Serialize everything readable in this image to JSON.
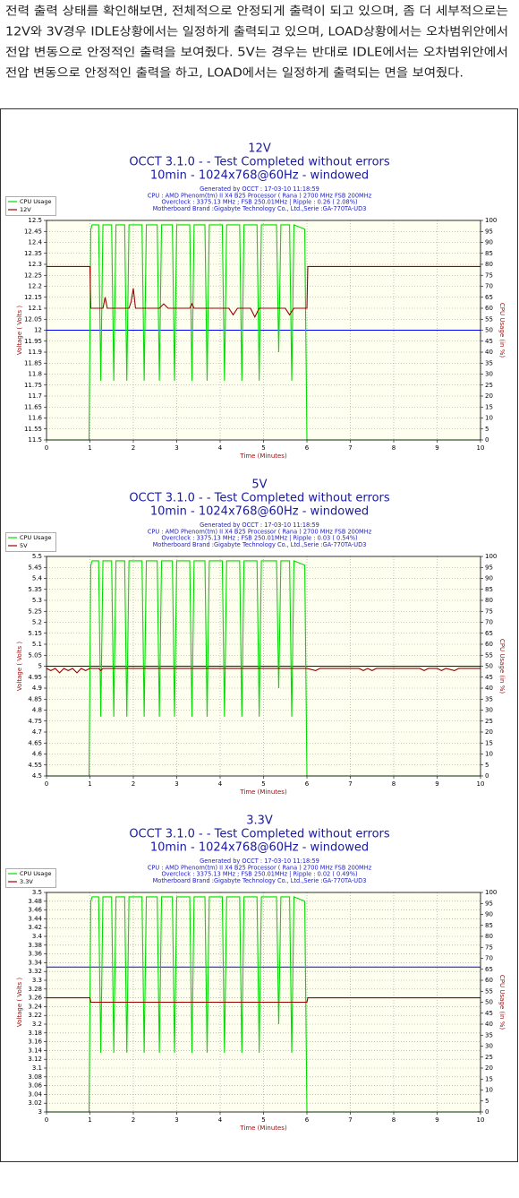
{
  "paragraph": [
    "전력 출력 상태를 확인해보면, 전체적으로 안정되게 출력이 되고 있으며, 좀 더 세부적으로는",
    "12V와 3V경우 IDLE상황에서는 일정하게 출력되고 있으며, LOAD상황에서는 오차범위안에서",
    "전압 변동으로 안정적인 출력을 보여줬다. 5V는 경우는 반대로 IDLE에서는 오차범위안에서",
    "전압 변동으로 안정적인 출력을 하고, LOAD에서는 일정하게 출력되는 면을 보여줬다."
  ],
  "chart_data": [
    {
      "type": "line",
      "title": "12V",
      "subtitle": [
        "OCCT 3.1.0 -  - Test Completed without errors",
        "10min - 1024x768@60Hz - windowed"
      ],
      "info": [
        "Generated by OCCT : 17-03-10 11:18:59",
        "CPU : AMD Phenom(tm) II X4 B25 Processor ( Rana ) 2700 MHz FSB 200MHz",
        "Overclock : 3375.13 MHz ; FSB 250.01MHz | Ripple : 0.26 ( 2.08%)",
        "Motherboard Brand :Gigabyte Technology Co., Ltd.,Serie :GA-770TA-UD3"
      ],
      "xlabel": "Time (Minutes)",
      "ylabel": "Voltage ( Volts )",
      "y2label": "CPU Usage (in %)",
      "xlim": [
        0,
        10
      ],
      "xticks": [
        0,
        1,
        2,
        3,
        4,
        5,
        6,
        7,
        8,
        9,
        10
      ],
      "ylim": [
        11.5,
        12.5
      ],
      "yticks": [
        11.5,
        11.55,
        11.6,
        11.65,
        11.7,
        11.75,
        11.8,
        11.85,
        11.9,
        11.95,
        12,
        12.05,
        12.1,
        12.15,
        12.2,
        12.25,
        12.3,
        12.35,
        12.4,
        12.45,
        12.5
      ],
      "y2lim": [
        0,
        100
      ],
      "y2ticks": [
        0,
        5,
        10,
        15,
        20,
        25,
        30,
        35,
        40,
        45,
        50,
        55,
        60,
        65,
        70,
        75,
        80,
        85,
        90,
        95,
        100
      ],
      "grid": true,
      "legend": "left",
      "reference_line": {
        "value": 12,
        "color": "#0000ff"
      },
      "series": [
        {
          "name": "CPU Usage",
          "color": "#00dd00",
          "axis": "y2",
          "x": [
            0,
            0.98,
            1.02,
            1.05,
            1.2,
            1.25,
            1.3,
            1.5,
            1.55,
            1.6,
            1.8,
            1.85,
            1.9,
            2.2,
            2.25,
            2.3,
            2.55,
            2.6,
            2.65,
            2.9,
            2.95,
            3.0,
            3.3,
            3.35,
            3.4,
            3.65,
            3.7,
            3.75,
            4.05,
            4.1,
            4.15,
            4.45,
            4.5,
            4.55,
            4.85,
            4.9,
            4.95,
            5.3,
            5.35,
            5.4,
            5.6,
            5.65,
            5.7,
            5.95,
            6.0,
            10
          ],
          "values": [
            0,
            0,
            96,
            98,
            98,
            27,
            98,
            98,
            27,
            98,
            98,
            27,
            98,
            98,
            27,
            98,
            98,
            27,
            98,
            98,
            27,
            98,
            98,
            27,
            98,
            98,
            27,
            98,
            98,
            27,
            98,
            98,
            27,
            98,
            98,
            27,
            98,
            98,
            40,
            98,
            98,
            27,
            98,
            96,
            0,
            0
          ]
        },
        {
          "name": "12V",
          "color": "#990000",
          "x": [
            0,
            1.0,
            1.02,
            1.3,
            1.35,
            1.4,
            1.9,
            1.95,
            2.0,
            2.05,
            2.6,
            2.7,
            2.8,
            3.3,
            3.35,
            3.4,
            4.2,
            4.3,
            4.4,
            4.7,
            4.8,
            4.9,
            5.5,
            5.6,
            5.7,
            6.0,
            6.02,
            10
          ],
          "values": [
            12.29,
            12.29,
            12.1,
            12.1,
            12.15,
            12.1,
            12.1,
            12.13,
            12.19,
            12.1,
            12.1,
            12.12,
            12.1,
            12.1,
            12.12,
            12.1,
            12.1,
            12.07,
            12.1,
            12.1,
            12.06,
            12.1,
            12.1,
            12.07,
            12.1,
            12.1,
            12.29,
            12.29
          ]
        }
      ]
    },
    {
      "type": "line",
      "title": "5V",
      "subtitle": [
        "OCCT 3.1.0 -  - Test Completed without errors",
        "10min - 1024x768@60Hz - windowed"
      ],
      "info": [
        "Generated by OCCT : 17-03-10 11:18:59",
        "CPU : AMD Phenom(tm) II X4 B25 Processor ( Rana ) 2700 MHz FSB 200MHz",
        "Overclock : 3375.13 MHz ; FSB 250.01MHz | Ripple : 0.03 ( 0.54%)",
        "Motherboard Brand :Gigabyte Technology Co., Ltd.,Serie :GA-770TA-UD3"
      ],
      "xlabel": "Time (Minutes)",
      "ylabel": "Voltage ( Volts )",
      "y2label": "CPU Usage (in %)",
      "xlim": [
        0,
        10
      ],
      "xticks": [
        0,
        1,
        2,
        3,
        4,
        5,
        6,
        7,
        8,
        9,
        10
      ],
      "ylim": [
        4.5,
        5.5
      ],
      "yticks": [
        4.5,
        4.55,
        4.6,
        4.65,
        4.7,
        4.75,
        4.8,
        4.85,
        4.9,
        4.95,
        5,
        5.05,
        5.1,
        5.15,
        5.2,
        5.25,
        5.3,
        5.35,
        5.4,
        5.45,
        5.5
      ],
      "y2lim": [
        0,
        100
      ],
      "y2ticks": [
        0,
        5,
        10,
        15,
        20,
        25,
        30,
        35,
        40,
        45,
        50,
        55,
        60,
        65,
        70,
        75,
        80,
        85,
        90,
        95,
        100
      ],
      "grid": true,
      "legend": "left",
      "reference_line": {
        "value": 5,
        "color": "#0000ff"
      },
      "series": [
        {
          "name": "CPU Usage",
          "color": "#00dd00",
          "axis": "y2",
          "x": [
            0,
            0.98,
            1.02,
            1.05,
            1.2,
            1.25,
            1.3,
            1.5,
            1.55,
            1.6,
            1.8,
            1.85,
            1.9,
            2.2,
            2.25,
            2.3,
            2.55,
            2.6,
            2.65,
            2.9,
            2.95,
            3.0,
            3.3,
            3.35,
            3.4,
            3.65,
            3.7,
            3.75,
            4.05,
            4.1,
            4.15,
            4.45,
            4.5,
            4.55,
            4.85,
            4.9,
            4.95,
            5.3,
            5.35,
            5.4,
            5.6,
            5.65,
            5.7,
            5.95,
            6.0,
            10
          ],
          "values": [
            0,
            0,
            96,
            98,
            98,
            27,
            98,
            98,
            27,
            98,
            98,
            27,
            98,
            98,
            27,
            98,
            98,
            27,
            98,
            98,
            27,
            98,
            98,
            27,
            98,
            98,
            27,
            98,
            98,
            27,
            98,
            98,
            27,
            98,
            98,
            27,
            98,
            98,
            40,
            98,
            98,
            27,
            98,
            96,
            0,
            0
          ]
        },
        {
          "name": "5V",
          "color": "#990000",
          "x": [
            0,
            0.1,
            0.2,
            0.3,
            0.4,
            0.5,
            0.6,
            0.7,
            0.8,
            0.9,
            1.0,
            1.2,
            1.25,
            1.3,
            6.0,
            6.2,
            6.3,
            7.2,
            7.3,
            7.4,
            7.5,
            7.6,
            8.6,
            8.7,
            8.8,
            9.0,
            9.1,
            9.2,
            9.4,
            9.5,
            10
          ],
          "values": [
            4.99,
            4.98,
            4.99,
            4.97,
            4.99,
            4.98,
            4.99,
            4.97,
            4.99,
            4.98,
            4.99,
            4.99,
            4.98,
            4.99,
            4.99,
            4.98,
            4.99,
            4.99,
            4.98,
            4.99,
            4.98,
            4.99,
            4.99,
            4.98,
            4.99,
            4.99,
            4.98,
            4.99,
            4.98,
            4.99,
            4.99
          ]
        }
      ]
    },
    {
      "type": "line",
      "title": "3.3V",
      "subtitle": [
        "OCCT 3.1.0 -  - Test Completed without errors",
        "10min - 1024x768@60Hz - windowed"
      ],
      "info": [
        "Generated by OCCT : 17-03-10 11:18:59",
        "CPU : AMD Phenom(tm) II X4 B25 Processor ( Rana ) 2700 MHz FSB 200MHz",
        "Overclock : 3375.13 MHz ; FSB 250.01MHz | Ripple : 0.02 ( 0.49%)",
        "Motherboard Brand :Gigabyte Technology Co., Ltd.,Serie :GA-770TA-UD3"
      ],
      "xlabel": "Time (Minutes)",
      "ylabel": "Voltage ( Volts )",
      "y2label": "CPU Usage (in %)",
      "xlim": [
        0,
        10
      ],
      "xticks": [
        0,
        1,
        2,
        3,
        4,
        5,
        6,
        7,
        8,
        9,
        10
      ],
      "ylim": [
        3,
        3.5
      ],
      "yticks": [
        3,
        3.02,
        3.04,
        3.06,
        3.08,
        3.1,
        3.12,
        3.14,
        3.16,
        3.18,
        3.2,
        3.22,
        3.24,
        3.26,
        3.28,
        3.3,
        3.32,
        3.34,
        3.36,
        3.38,
        3.4,
        3.42,
        3.44,
        3.46,
        3.48,
        3.5
      ],
      "y2lim": [
        0,
        100
      ],
      "y2ticks": [
        0,
        5,
        10,
        15,
        20,
        25,
        30,
        35,
        40,
        45,
        50,
        55,
        60,
        65,
        70,
        75,
        80,
        85,
        90,
        95,
        100
      ],
      "grid": true,
      "legend": "left",
      "reference_line": {
        "value": 3.33,
        "color": "#0000ff"
      },
      "series": [
        {
          "name": "CPU Usage",
          "color": "#00dd00",
          "axis": "y2",
          "x": [
            0,
            0.98,
            1.02,
            1.05,
            1.2,
            1.25,
            1.3,
            1.5,
            1.55,
            1.6,
            1.8,
            1.85,
            1.9,
            2.2,
            2.25,
            2.3,
            2.55,
            2.6,
            2.65,
            2.9,
            2.95,
            3.0,
            3.3,
            3.35,
            3.4,
            3.65,
            3.7,
            3.75,
            4.05,
            4.1,
            4.15,
            4.45,
            4.5,
            4.55,
            4.85,
            4.9,
            4.95,
            5.3,
            5.35,
            5.4,
            5.6,
            5.65,
            5.7,
            5.95,
            6.0,
            10
          ],
          "values": [
            0,
            0,
            96,
            98,
            98,
            27,
            98,
            98,
            27,
            98,
            98,
            27,
            98,
            98,
            27,
            98,
            98,
            27,
            98,
            98,
            27,
            98,
            98,
            27,
            98,
            98,
            27,
            98,
            98,
            27,
            98,
            98,
            27,
            98,
            98,
            27,
            98,
            98,
            40,
            98,
            98,
            27,
            98,
            96,
            0,
            0
          ]
        },
        {
          "name": "3.3V",
          "color": "#990000",
          "x": [
            0,
            1.0,
            1.02,
            6.0,
            6.02,
            10
          ],
          "values": [
            3.26,
            3.26,
            3.25,
            3.25,
            3.26,
            3.26
          ]
        }
      ]
    }
  ]
}
